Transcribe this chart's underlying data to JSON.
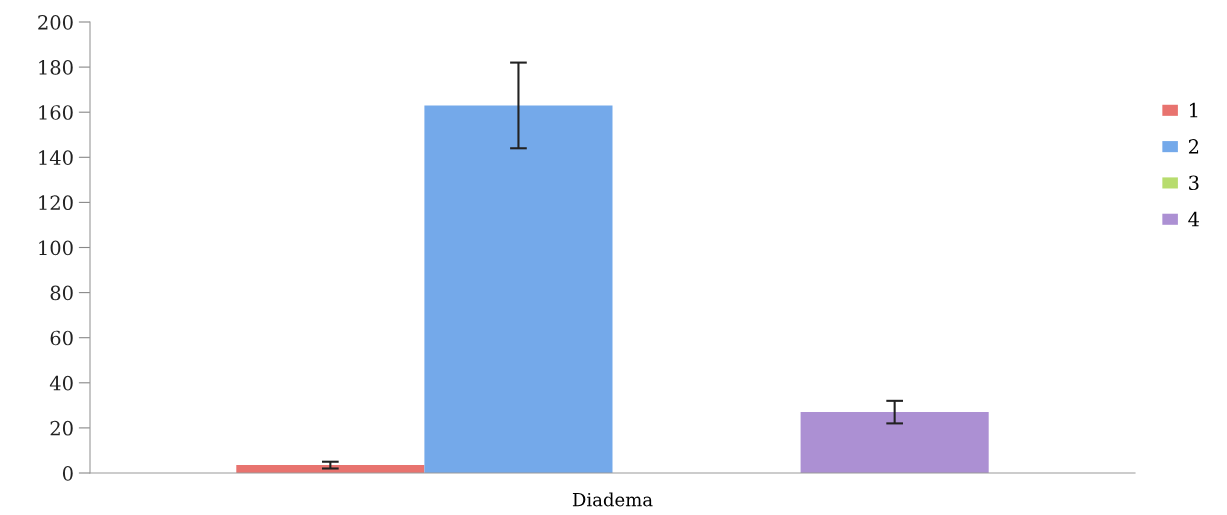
{
  "chart_data": {
    "type": "bar",
    "xlabel": null,
    "categories": [
      "Diadema"
    ],
    "series": [
      {
        "name": "1",
        "color": "#e8736f",
        "values": [
          3.5
        ],
        "errors": [
          1.5
        ]
      },
      {
        "name": "2",
        "color": "#74a9ea",
        "values": [
          163
        ],
        "errors": [
          19
        ]
      },
      {
        "name": "3",
        "color": "#b7dc6e",
        "values": [
          0
        ],
        "errors": [
          null
        ]
      },
      {
        "name": "4",
        "color": "#ac90d3",
        "values": [
          27
        ],
        "errors": [
          5
        ]
      }
    ],
    "ylim": [
      0,
      200
    ],
    "yticks": [
      0,
      20,
      40,
      60,
      80,
      100,
      120,
      140,
      160,
      180,
      200
    ],
    "grid": false,
    "legend": "right"
  }
}
